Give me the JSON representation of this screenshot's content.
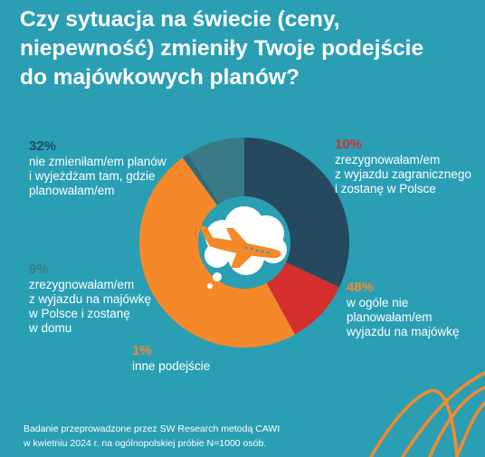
{
  "title_lines": [
    "Czy sytuacja na świecie (ceny,",
    "niepewność) zmieniły Twoje podejście",
    "do majówkowych planów?"
  ],
  "chart_data": {
    "type": "pie",
    "title": "Czy sytuacja na świecie (ceny, niepewność) zmieniły Twoje podejście do majówkowych planów?",
    "unit": "%",
    "slices": [
      {
        "label": "nie zmieniłam/em planów i wyjeżdżam tam, gdzie planowałam/em",
        "display": "32%",
        "value": 32,
        "color": "#25495f",
        "lines": [
          "nie zmieniłam/em planów",
          "i wyjeżdżam tam, gdzie",
          "planowałam/em"
        ]
      },
      {
        "label": "zrezygnowałam/em z wyjazdu zagranicznego i zostanę w Polsce",
        "display": "10%",
        "value": 10,
        "color": "#d42f2c",
        "lines": [
          "zrezygnowałam/em",
          "z wyjazdu zagranicznego",
          "i zostanę w Polsce"
        ]
      },
      {
        "label": "w ogóle nie planowałam/em wyjazdu na majówkę",
        "display": "48%",
        "value": 48,
        "color": "#f5892a",
        "lines": [
          "w ogóle nie",
          "planowałam/em",
          "wyjazdu na majówkę"
        ]
      },
      {
        "label": "inne podejście",
        "display": "1%",
        "value": 1,
        "color": "#2f6a78",
        "lines": [
          "inne podejście"
        ]
      },
      {
        "label": "zrezygnowałam/em z wyjazdu na majówkę w Polsce i zostanę w domu",
        "display": "9%",
        "value": 9,
        "color": "#3a7a86",
        "lines": [
          "zrezygnowałam/em",
          "z wyjazdu na majówkę",
          "w Polsce i zostanę",
          "w domu"
        ]
      }
    ]
  },
  "colors": {
    "background": "#2a9fb4",
    "pct_32": "#25495f",
    "pct_10": "#d42f2c",
    "pct_48": "#f5892a",
    "pct_1": "#f5892a",
    "pct_9": "#3a7a86"
  },
  "icon": "airplane-in-cloud-icon",
  "footnote_lines": [
    "Badanie przeprowadzone przez SW Research metodą CAWI",
    "w kwietniu 2024 r. na ogólnopolskiej próbie N=1000 osób."
  ]
}
